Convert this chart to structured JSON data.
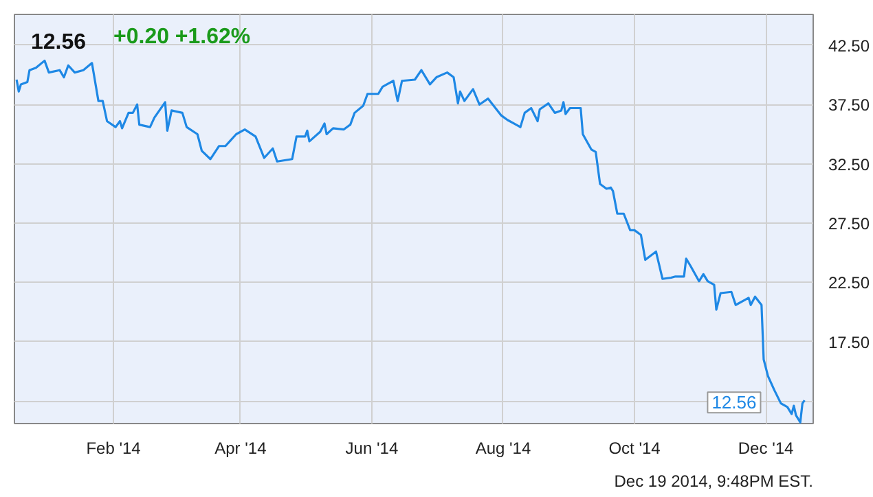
{
  "chart_data": {
    "type": "line",
    "title": "12.56",
    "subtitle": "+0.20 +1.62%",
    "x": [
      "2013-12-18",
      "2013-12-19",
      "2013-12-20",
      "2013-12-23",
      "2013-12-24",
      "2013-12-27",
      "2013-12-31",
      "2014-01-02",
      "2014-01-07",
      "2014-01-09",
      "2014-01-11",
      "2014-01-14",
      "2014-01-18",
      "2014-01-22",
      "2014-01-25",
      "2014-01-27",
      "2014-01-29",
      "2014-02-02",
      "2014-02-04",
      "2014-02-05",
      "2014-02-08",
      "2014-02-10",
      "2014-02-12",
      "2014-02-13",
      "2014-02-18",
      "2014-02-20",
      "2014-02-25",
      "2014-02-26",
      "2014-02-28",
      "2014-03-05",
      "2014-03-07",
      "2014-03-12",
      "2014-03-14",
      "2014-03-18",
      "2014-03-22",
      "2014-03-25",
      "2014-03-27",
      "2014-03-30",
      "2014-04-03",
      "2014-04-08",
      "2014-04-12",
      "2014-04-16",
      "2014-04-18",
      "2014-04-25",
      "2014-04-27",
      "2014-05-01",
      "2014-05-02",
      "2014-05-03",
      "2014-05-08",
      "2014-05-10",
      "2014-05-11",
      "2014-05-14",
      "2014-05-19",
      "2014-05-22",
      "2014-05-24",
      "2014-05-28",
      "2014-05-30",
      "2014-06-04",
      "2014-06-06",
      "2014-06-08",
      "2014-06-11",
      "2014-06-13",
      "2014-06-15",
      "2014-06-21",
      "2014-06-24",
      "2014-06-28",
      "2014-07-01",
      "2014-07-06",
      "2014-07-09",
      "2014-07-11",
      "2014-07-12",
      "2014-07-14",
      "2014-07-18",
      "2014-07-21",
      "2014-07-25",
      "2014-07-31",
      "2014-08-03",
      "2014-08-06",
      "2014-08-09",
      "2014-08-11",
      "2014-08-14",
      "2014-08-17",
      "2014-08-18",
      "2014-08-22",
      "2014-08-25",
      "2014-08-28",
      "2014-08-29",
      "2014-08-30",
      "2014-09-01",
      "2014-09-06",
      "2014-09-07",
      "2014-09-11",
      "2014-09-13",
      "2014-09-15",
      "2014-09-18",
      "2014-09-20",
      "2014-09-21",
      "2014-09-23",
      "2014-09-26",
      "2014-09-29",
      "2014-10-01",
      "2014-10-04",
      "2014-10-06",
      "2014-10-11",
      "2014-10-14",
      "2014-10-18",
      "2014-10-20",
      "2014-10-24",
      "2014-10-25",
      "2014-10-27",
      "2014-10-31",
      "2014-11-02",
      "2014-11-04",
      "2014-11-07",
      "2014-11-08",
      "2014-11-10",
      "2014-11-15",
      "2014-11-17",
      "2014-11-21",
      "2014-11-23",
      "2014-11-24",
      "2014-11-26",
      "2014-11-29",
      "2014-11-30",
      "2014-12-02",
      "2014-12-05",
      "2014-12-08",
      "2014-12-11",
      "2014-12-13",
      "2014-12-14",
      "2014-12-15",
      "2014-12-17",
      "2014-12-18",
      "2014-12-19"
    ],
    "series": [
      {
        "color": "#1e88e5",
        "values": [
          39.6,
          38.6,
          39.2,
          39.4,
          40.4,
          40.6,
          41.2,
          40.2,
          40.4,
          39.8,
          40.8,
          40.2,
          40.4,
          41.0,
          37.8,
          37.8,
          36.1,
          35.6,
          36.1,
          35.5,
          36.8,
          36.8,
          37.5,
          35.8,
          35.6,
          36.4,
          37.7,
          35.3,
          37.0,
          36.8,
          35.6,
          35.0,
          33.6,
          32.9,
          34.0,
          34.0,
          34.4,
          35.0,
          35.4,
          34.8,
          33.0,
          33.8,
          32.7,
          32.9,
          34.8,
          34.8,
          35.3,
          34.4,
          35.2,
          35.9,
          35.0,
          35.5,
          35.4,
          35.8,
          36.8,
          37.4,
          38.4,
          38.4,
          39.0,
          39.2,
          39.5,
          37.8,
          39.5,
          39.6,
          40.4,
          39.2,
          39.8,
          40.2,
          39.8,
          37.6,
          38.6,
          37.8,
          38.8,
          37.5,
          38.0,
          36.6,
          36.2,
          35.9,
          35.6,
          36.8,
          37.2,
          36.1,
          37.1,
          37.6,
          36.8,
          37.0,
          37.7,
          36.7,
          37.2,
          37.2,
          35.0,
          33.7,
          33.5,
          30.8,
          30.4,
          30.5,
          30.2,
          28.3,
          28.3,
          26.9,
          26.9,
          26.5,
          24.4,
          25.1,
          22.8,
          22.9,
          23.0,
          23.0,
          24.5,
          23.9,
          22.6,
          23.2,
          22.6,
          22.3,
          20.2,
          21.6,
          21.7,
          20.6,
          21.0,
          21.2,
          20.6,
          21.3,
          20.6,
          16.0,
          14.6,
          13.4,
          12.3,
          12.0,
          11.4,
          12.1,
          11.3,
          10.7,
          12.3,
          12.56
        ]
      }
    ],
    "xlim": [
      "2013-12-17",
      "2014-12-23"
    ],
    "xticks": [
      {
        "value": "2014-02-01",
        "label": "Feb '14"
      },
      {
        "value": "2014-04-01",
        "label": "Apr '14"
      },
      {
        "value": "2014-06-01",
        "label": "Jun '14"
      },
      {
        "value": "2014-08-01",
        "label": "Aug '14"
      },
      {
        "value": "2014-10-01",
        "label": "Oct '14"
      },
      {
        "value": "2014-12-01",
        "label": "Dec '14"
      }
    ],
    "ylim": [
      10.6,
      45.1
    ],
    "yticks": [
      {
        "value": 12.5,
        "label": null
      },
      {
        "value": 17.5,
        "label": "17.50"
      },
      {
        "value": 22.5,
        "label": "22.50"
      },
      {
        "value": 27.5,
        "label": "27.50"
      },
      {
        "value": 32.5,
        "label": "32.50"
      },
      {
        "value": 37.5,
        "label": "37.50"
      },
      {
        "value": 42.5,
        "label": "42.50"
      }
    ],
    "grid": true,
    "annotations": [
      {
        "text": "12.56",
        "x": "2014-12-19",
        "y": 12.56
      },
      "Dec 19 2014, 9:48PM EST."
    ]
  }
}
